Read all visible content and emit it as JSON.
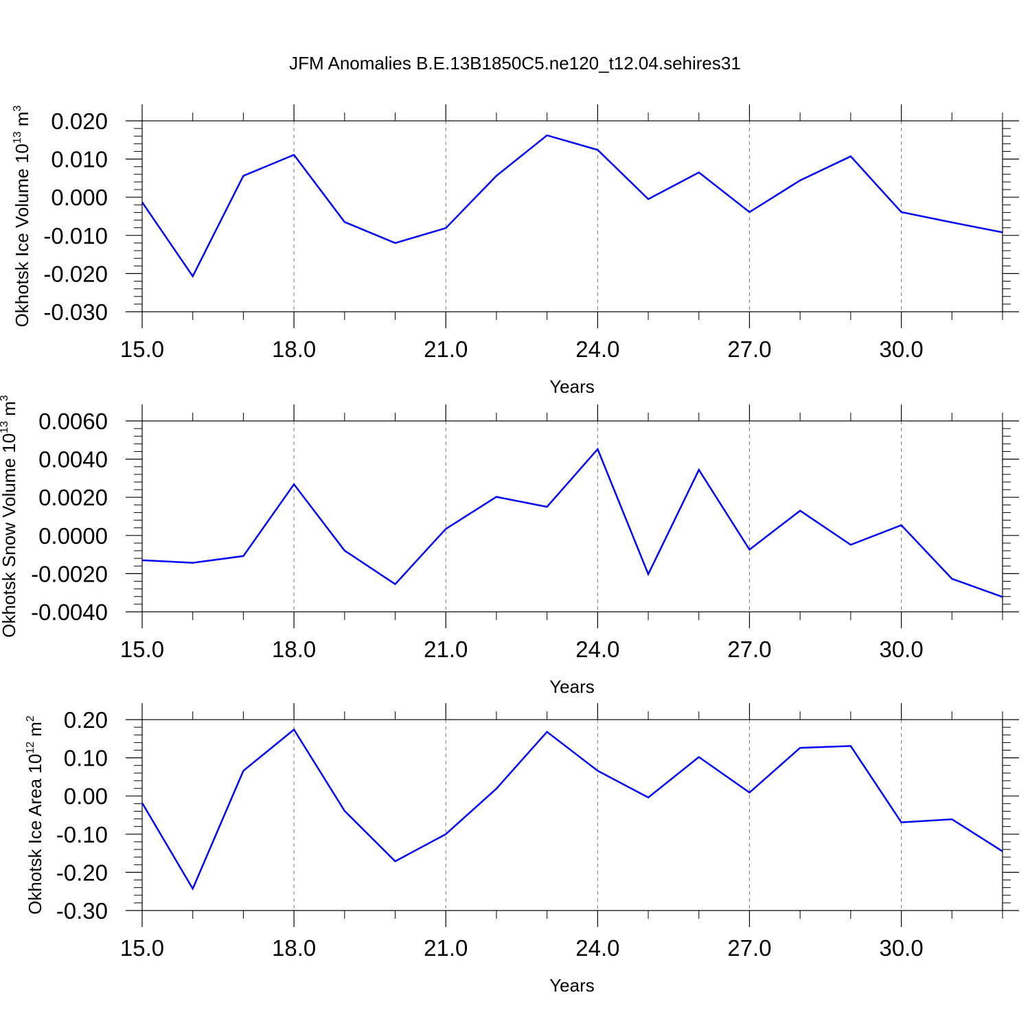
{
  "title": "JFM Anomalies B.E.13B1850C5.ne120_t12.04.sehires31",
  "chart_data": [
    {
      "type": "line",
      "xlabel": "Years",
      "ylabel_base": "Okhotsk Ice Volume 10",
      "ylabel_exp": "13",
      "ylabel_unit": " m",
      "ylabel_unit_exp": "3",
      "xlim": [
        15,
        32
      ],
      "ylim": [
        -0.03,
        0.02
      ],
      "xticks": [
        15,
        18,
        21,
        24,
        27,
        30
      ],
      "xtick_labels": [
        "15.0",
        "18.0",
        "21.0",
        "24.0",
        "27.0",
        "30.0"
      ],
      "yticks": [
        -0.03,
        -0.02,
        -0.01,
        0.0,
        0.01,
        0.02
      ],
      "ytick_labels": [
        "-0.030",
        "-0.020",
        "-0.010",
        "0.000",
        "0.010",
        "0.020"
      ],
      "grid": "vertical dashed at major x ticks",
      "color": "#0000ff",
      "x": [
        15,
        16,
        17,
        18,
        19,
        20,
        21,
        22,
        23,
        24,
        25,
        26,
        27,
        28,
        29,
        30,
        31,
        32
      ],
      "y": [
        -0.0013,
        -0.0207,
        0.0056,
        0.0111,
        -0.0065,
        -0.012,
        -0.0081,
        0.0056,
        0.0162,
        0.0124,
        -0.0005,
        0.0065,
        -0.0039,
        0.0044,
        0.0107,
        -0.0039,
        -0.0066,
        -0.0092
      ]
    },
    {
      "type": "line",
      "xlabel": "Years",
      "ylabel_base": "Okhotsk Snow Volume 10",
      "ylabel_exp": "13",
      "ylabel_unit": " m",
      "ylabel_unit_exp": "3",
      "xlim": [
        15,
        32
      ],
      "ylim": [
        -0.004,
        0.006
      ],
      "xticks": [
        15,
        18,
        21,
        24,
        27,
        30
      ],
      "xtick_labels": [
        "15.0",
        "18.0",
        "21.0",
        "24.0",
        "27.0",
        "30.0"
      ],
      "yticks": [
        -0.004,
        -0.002,
        0.0,
        0.002,
        0.004,
        0.006
      ],
      "ytick_labels": [
        "-0.0040",
        "-0.0020",
        "0.0000",
        "0.0020",
        "0.0040",
        "0.0060"
      ],
      "grid": "vertical dashed at major x ticks",
      "color": "#0000ff",
      "x": [
        15,
        16,
        17,
        18,
        19,
        20,
        21,
        22,
        23,
        24,
        25,
        26,
        27,
        28,
        29,
        30,
        31,
        32
      ],
      "y": [
        -0.0013,
        -0.00143,
        -0.00108,
        0.00268,
        -0.00079,
        -0.00255,
        0.00034,
        0.00202,
        0.0015,
        0.00452,
        -0.00203,
        0.00344,
        -0.00074,
        0.0013,
        -0.00049,
        0.00054,
        -0.00227,
        -0.00322
      ]
    },
    {
      "type": "line",
      "xlabel": "Years",
      "ylabel_base": "Okhotsk Ice Area 10",
      "ylabel_exp": "12",
      "ylabel_unit": " m",
      "ylabel_unit_exp": "2",
      "xlim": [
        15,
        32
      ],
      "ylim": [
        -0.3,
        0.2
      ],
      "xticks": [
        15,
        18,
        21,
        24,
        27,
        30
      ],
      "xtick_labels": [
        "15.0",
        "18.0",
        "21.0",
        "24.0",
        "27.0",
        "30.0"
      ],
      "yticks": [
        -0.3,
        -0.2,
        -0.1,
        0.0,
        0.1,
        0.2
      ],
      "ytick_labels": [
        "-0.30",
        "-0.20",
        "-0.10",
        "0.00",
        "0.10",
        "0.20"
      ],
      "grid": "vertical dashed at major x ticks",
      "color": "#0000ff",
      "x": [
        15,
        16,
        17,
        18,
        19,
        20,
        21,
        22,
        23,
        24,
        25,
        26,
        27,
        28,
        29,
        30,
        31,
        32
      ],
      "y": [
        -0.018,
        -0.243,
        0.066,
        0.174,
        -0.039,
        -0.171,
        -0.1,
        0.019,
        0.168,
        0.066,
        -0.004,
        0.102,
        0.009,
        0.126,
        0.131,
        -0.069,
        -0.061,
        -0.145
      ]
    }
  ]
}
